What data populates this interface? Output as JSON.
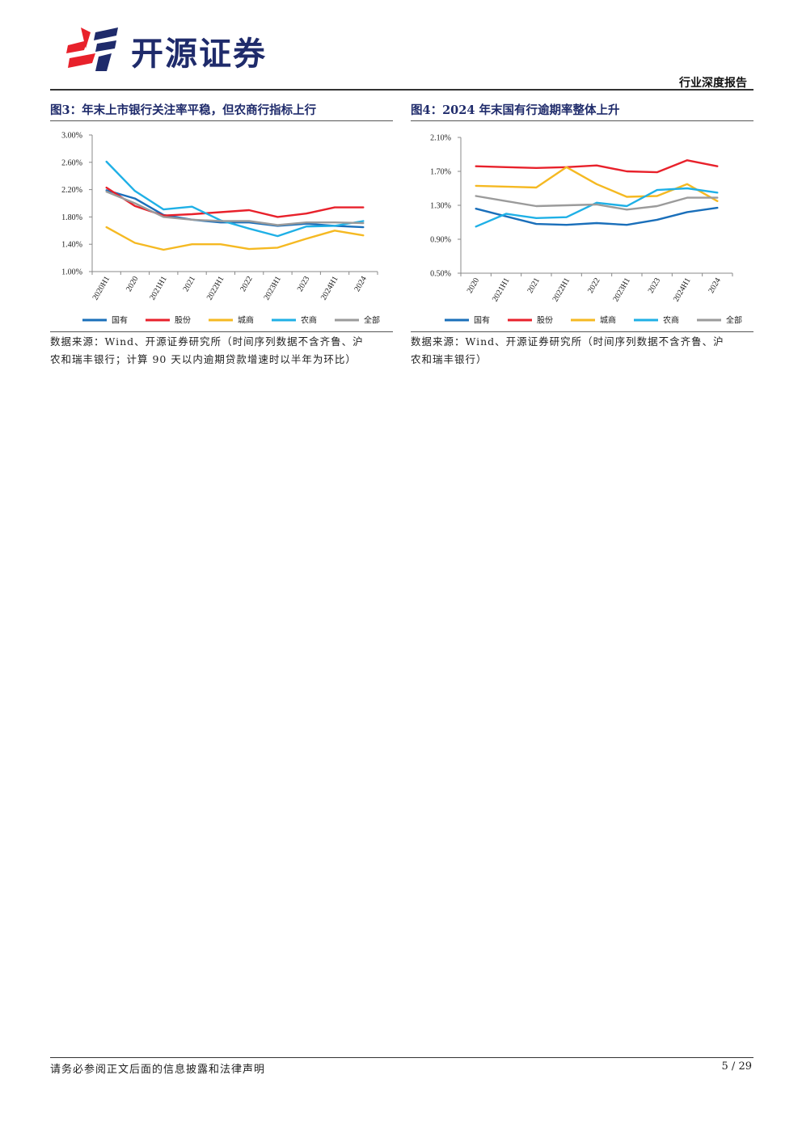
{
  "header": {
    "brand": "开源证券",
    "report_type": "行业深度报告"
  },
  "figures": [
    {
      "title": "图3：年末上市银行关注率平稳，但农商行指标上行",
      "source": [
        "数据来源：Wind、开源证券研究所（时间序列数据不含齐鲁、沪",
        "农和瑞丰银行；计算 90 天以内逾期贷款增速时以半年为环比）"
      ]
    },
    {
      "title": "图4：2024 年末国有行逾期率整体上升",
      "source": [
        "数据来源：Wind、开源证券研究所（时间序列数据不含齐鲁、沪",
        "农和瑞丰银行）"
      ]
    }
  ],
  "chart_data": [
    {
      "type": "line",
      "categories": [
        "2020H1",
        "2020",
        "2021H1",
        "2021",
        "2022H1",
        "2022",
        "2023H1",
        "2023",
        "2024H1",
        "2024"
      ],
      "ylim": [
        1.0,
        3.0
      ],
      "yticks": [
        "3.00%",
        "2.60%",
        "2.20%",
        "1.80%",
        "1.40%",
        "1.00%"
      ],
      "ytick_values": [
        3.0,
        2.6,
        2.2,
        1.8,
        1.4,
        1.0
      ],
      "series": [
        {
          "name": "国有",
          "color": "#1a6fba",
          "values": [
            2.19,
            2.07,
            1.83,
            1.76,
            1.72,
            1.72,
            1.67,
            1.7,
            1.67,
            1.65
          ]
        },
        {
          "name": "股份",
          "color": "#e8212b",
          "values": [
            2.23,
            1.96,
            1.82,
            1.84,
            1.87,
            1.9,
            1.8,
            1.85,
            1.94,
            1.94
          ]
        },
        {
          "name": "城商",
          "color": "#f5b922",
          "values": [
            1.65,
            1.42,
            1.32,
            1.4,
            1.4,
            1.33,
            1.35,
            1.48,
            1.6,
            1.53
          ]
        },
        {
          "name": "农商",
          "color": "#1fb0e6",
          "values": [
            2.61,
            2.18,
            1.91,
            1.95,
            1.75,
            1.63,
            1.52,
            1.66,
            1.67,
            1.74
          ]
        },
        {
          "name": "全部",
          "color": "#9b9b9b",
          "values": [
            2.17,
            2.0,
            1.8,
            1.76,
            1.74,
            1.74,
            1.68,
            1.72,
            1.72,
            1.71
          ]
        }
      ]
    },
    {
      "type": "line",
      "categories": [
        "2020",
        "2021H1",
        "2021",
        "2022H1",
        "2022",
        "2023H1",
        "2023",
        "2024H1",
        "2024"
      ],
      "ylim": [
        0.5,
        2.1
      ],
      "yticks": [
        "2.10%",
        "1.70%",
        "1.30%",
        "0.90%",
        "0.50%"
      ],
      "ytick_values": [
        2.1,
        1.7,
        1.3,
        0.9,
        0.5
      ],
      "series": [
        {
          "name": "国有",
          "color": "#1a6fba",
          "values": [
            1.26,
            1.17,
            1.08,
            1.07,
            1.09,
            1.07,
            1.13,
            1.22,
            1.27
          ]
        },
        {
          "name": "股份",
          "color": "#e8212b",
          "values": [
            1.76,
            1.75,
            1.74,
            1.75,
            1.77,
            1.7,
            1.69,
            1.83,
            1.76
          ]
        },
        {
          "name": "城商",
          "color": "#f5b922",
          "values": [
            1.53,
            1.52,
            1.51,
            1.75,
            1.55,
            1.4,
            1.41,
            1.55,
            1.35
          ]
        },
        {
          "name": "农商",
          "color": "#1fb0e6",
          "values": [
            1.05,
            1.2,
            1.15,
            1.16,
            1.33,
            1.29,
            1.48,
            1.5,
            1.45
          ]
        },
        {
          "name": "全部",
          "color": "#9b9b9b",
          "values": [
            1.41,
            1.35,
            1.29,
            1.3,
            1.31,
            1.25,
            1.29,
            1.39,
            1.39
          ]
        }
      ]
    }
  ],
  "footer": {
    "disclaimer": "请务必参阅正文后面的信息披露和法律声明",
    "page": "5 / 29"
  }
}
